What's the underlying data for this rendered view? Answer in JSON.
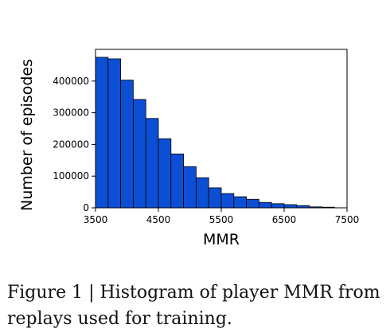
{
  "chart_data": {
    "type": "bar",
    "title": "",
    "xlabel": "MMR",
    "ylabel": "Number of episodes",
    "xlim": [
      3500,
      7500
    ],
    "ylim": [
      0,
      500000
    ],
    "xticks": [
      3500,
      4500,
      5500,
      6500,
      7500
    ],
    "yticks": [
      0,
      100000,
      200000,
      300000,
      400000
    ],
    "bin_edges": [
      3500,
      3700,
      3900,
      4100,
      4300,
      4500,
      4700,
      4900,
      5100,
      5300,
      5500,
      5700,
      5900,
      6100,
      6300,
      6500,
      6700,
      6900,
      7100,
      7300
    ],
    "values": [
      475000,
      470000,
      403000,
      342000,
      282000,
      218000,
      170000,
      130000,
      95000,
      63000,
      45000,
      35000,
      27000,
      17000,
      13000,
      10000,
      7000,
      3000,
      2000
    ],
    "bar_color": "#0c4fd4",
    "grid": false
  },
  "caption": "Figure 1 | Histogram of player MMR from replays used for training."
}
